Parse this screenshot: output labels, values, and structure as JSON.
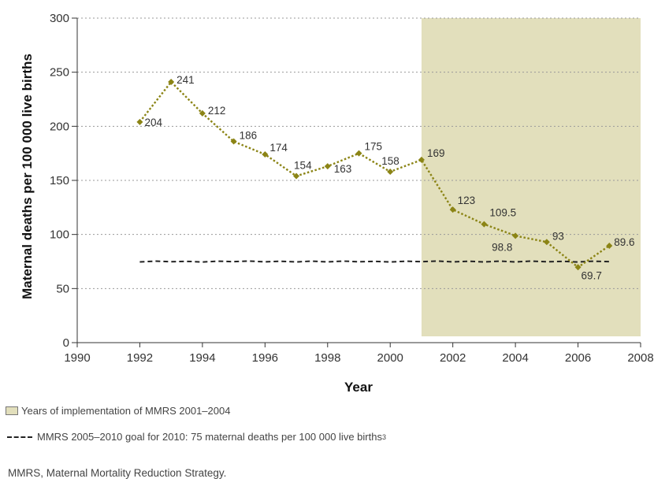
{
  "chart_data": {
    "type": "line",
    "xlabel": "Year",
    "ylabel": "Maternal deaths per 100 000 live births",
    "xlim": [
      1990,
      2008
    ],
    "ylim": [
      0,
      300
    ],
    "x_ticks": [
      1990,
      1992,
      1994,
      1996,
      1998,
      2000,
      2002,
      2004,
      2006,
      2008
    ],
    "y_ticks": [
      0,
      50,
      100,
      150,
      200,
      250,
      300
    ],
    "grid": "horizontal dotted",
    "series": [
      {
        "color": "#8b8415",
        "line_style": "dotted",
        "marker": "diamond",
        "x": [
          1992,
          1993,
          1994,
          1995,
          1996,
          1997,
          1998,
          1999,
          2000,
          2001,
          2002,
          2003,
          2004,
          2005,
          2006,
          2007
        ],
        "values": [
          204,
          241,
          212,
          186,
          174,
          154,
          163,
          175,
          158,
          169,
          123,
          109.5,
          98.8,
          93,
          69.7,
          89.6
        ],
        "labels": [
          "204",
          "241",
          "212",
          "186",
          "174",
          "154",
          "163",
          "175",
          "158",
          "169",
          "123",
          "109.5",
          "98.8",
          "93",
          "69.7",
          "89.6"
        ]
      }
    ],
    "goal_line": {
      "value": 75,
      "x_start": 1992,
      "x_end": 2007,
      "color": "#222222",
      "line_style": "dashed"
    },
    "shaded_region": {
      "x_start": 2001,
      "x_end": 2008,
      "color": "#e2dfbc"
    }
  },
  "legend": {
    "shaded_label": "Years of implementation of MMRS 2001–2004",
    "goal_label": "MMRS 2005–2010 goal for 2010: 75 maternal deaths per 100 000 live births",
    "goal_sup": "3"
  },
  "footnote": "MMRS, Maternal Mortality Reduction Strategy."
}
